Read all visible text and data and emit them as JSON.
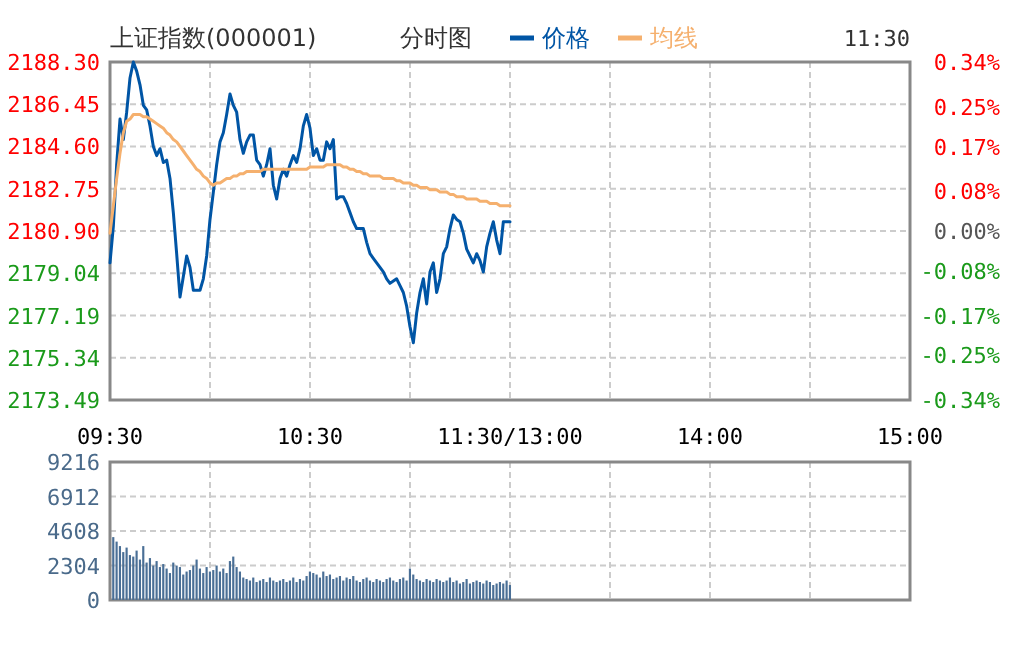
{
  "chart_data": [
    {
      "type": "line",
      "title": "上证指数(000001)",
      "subtitle": "分时图",
      "annotations": [
        "11:30"
      ],
      "legend": "top",
      "grid": true,
      "categories": [
        "09:30",
        null,
        null,
        null,
        null,
        null,
        null,
        null,
        null,
        null,
        null,
        null,
        null,
        null,
        null,
        null,
        null,
        null,
        null,
        null,
        null,
        null,
        null,
        null,
        null,
        null,
        null,
        null,
        null,
        null,
        null,
        null,
        null,
        null,
        null,
        null,
        null,
        null,
        null,
        null,
        null,
        null,
        null,
        null,
        null,
        null,
        null,
        null,
        null,
        null,
        null,
        null,
        null,
        null,
        null,
        null,
        null,
        null,
        null,
        null,
        "10:30",
        null,
        null,
        null,
        null,
        null,
        null,
        null,
        null,
        null,
        null,
        null,
        null,
        null,
        null,
        null,
        null,
        null,
        null,
        null,
        null,
        null,
        null,
        null,
        null,
        null,
        null,
        null,
        null,
        null,
        null,
        null,
        null,
        null,
        null,
        null,
        null,
        null,
        null,
        null,
        null,
        null,
        null,
        null,
        null,
        null,
        null,
        null,
        null,
        null,
        null,
        null,
        null,
        null,
        null,
        null,
        null,
        null,
        null,
        null,
        "11:30/13:00",
        null,
        null,
        null,
        null,
        null,
        null,
        null,
        null,
        null,
        null,
        null,
        null,
        null,
        null,
        null,
        null,
        null,
        null,
        null,
        null,
        null,
        null,
        null,
        null,
        null,
        null,
        null,
        null,
        null,
        null,
        null,
        null,
        null,
        null,
        null,
        null,
        null,
        null,
        null,
        null,
        null,
        null,
        null,
        null,
        null,
        null,
        null,
        null,
        null,
        null,
        null,
        null,
        null,
        null,
        null,
        null,
        null,
        null,
        null,
        "14:00",
        null,
        null,
        null,
        null,
        null,
        null,
        null,
        null,
        null,
        null,
        null,
        null,
        null,
        null,
        null,
        null,
        null,
        null,
        null,
        null,
        null,
        null,
        null,
        null,
        null,
        null,
        null,
        null,
        null,
        null,
        null,
        null,
        null,
        null,
        null,
        null,
        null,
        null,
        null,
        null,
        null,
        null,
        null,
        null,
        null,
        null,
        null,
        null,
        null,
        null,
        null,
        null,
        null,
        null,
        null,
        null,
        null,
        null,
        null,
        "15:00"
      ],
      "ylim": [
        2173.49,
        2188.3
      ],
      "yticks": [
        {
          "value": 2173.49,
          "label": "2173.49"
        },
        {
          "value": 2175.34,
          "label": "2175.34"
        },
        {
          "value": 2177.19,
          "label": "2177.19"
        },
        {
          "value": 2179.04,
          "label": "2179.04"
        },
        {
          "value": 2180.9,
          "label": "2180.90"
        },
        {
          "value": 2182.75,
          "label": "2182.75"
        },
        {
          "value": 2184.6,
          "label": "2184.60"
        },
        {
          "value": 2186.45,
          "label": "2186.45"
        },
        {
          "value": 2188.3,
          "label": "2188.30"
        }
      ],
      "y2lim": [
        -0.34,
        0.34
      ],
      "y2ticks": [
        {
          "value": -0.34,
          "label": "-0.34%"
        },
        {
          "value": -0.25,
          "label": "-0.25%"
        },
        {
          "value": -0.17,
          "label": "-0.17%"
        },
        {
          "value": -0.08,
          "label": "-0.08%"
        },
        {
          "value": 0,
          "label": "0.00%"
        },
        {
          "value": 0.08,
          "label": "0.08%"
        },
        {
          "value": 0.17,
          "label": "0.17%"
        },
        {
          "value": 0.25,
          "label": "0.25%"
        },
        {
          "value": 0.34,
          "label": "0.34%"
        }
      ],
      "series": [
        {
          "name": "价格",
          "color": "#0055a5",
          "values": [
            2179.5,
            2181.1,
            2183.8,
            2185.8,
            2184.9,
            2186.1,
            2187.6,
            2188.3,
            2187.9,
            2187.3,
            2186.4,
            2186.2,
            2185.5,
            2184.6,
            2184.2,
            2184.5,
            2183.9,
            2184.0,
            2183.2,
            2181.7,
            2179.9,
            2178.0,
            2178.9,
            2179.8,
            2179.3,
            2178.3,
            2178.3,
            2178.3,
            2178.8,
            2179.8,
            2181.4,
            2182.6,
            2183.8,
            2184.8,
            2185.2,
            2186.0,
            2186.9,
            2186.4,
            2186.1,
            2184.9,
            2184.3,
            2184.8,
            2185.1,
            2185.1,
            2184.0,
            2183.8,
            2183.3,
            2183.8,
            2184.5,
            2182.9,
            2182.3,
            2183.2,
            2183.6,
            2183.3,
            2183.8,
            2184.2,
            2183.9,
            2184.5,
            2185.5,
            2186.0,
            2185.4,
            2184.2,
            2184.5,
            2184.0,
            2184.0,
            2184.8,
            2184.5,
            2184.9,
            2182.3,
            2182.4,
            2182.4,
            2182.1,
            2181.7,
            2181.3,
            2181.0,
            2181.0,
            2181.0,
            2180.4,
            2179.9,
            2179.7,
            2179.5,
            2179.3,
            2179.1,
            2178.8,
            2178.6,
            2178.7,
            2178.8,
            2178.5,
            2178.2,
            2177.6,
            2176.7,
            2176.0,
            2177.3,
            2178.2,
            2178.8,
            2177.7,
            2179.1,
            2179.5,
            2178.2,
            2178.8,
            2179.9,
            2180.2,
            2181.0,
            2181.6,
            2181.4,
            2181.3,
            2180.8,
            2180.1,
            2179.8,
            2179.5,
            2179.9,
            2179.6,
            2179.1,
            2180.2,
            2180.8,
            2181.3,
            2180.5,
            2179.9,
            2181.3,
            2181.3,
            2181.3,
            null,
            null,
            null,
            null,
            null,
            null,
            null,
            null,
            null,
            null,
            null,
            null,
            null,
            null,
            null,
            null,
            null,
            null,
            null,
            null,
            null,
            null,
            null,
            null,
            null,
            null,
            null,
            null,
            null,
            null,
            null,
            null,
            null,
            null,
            null,
            null,
            null,
            null,
            null,
            null,
            null,
            null,
            null,
            null,
            null,
            null,
            null,
            null,
            null,
            null,
            null,
            null,
            null,
            null,
            null,
            null,
            null,
            null,
            null,
            null,
            null,
            null,
            null,
            null,
            null,
            null,
            null,
            null,
            null,
            null,
            null,
            null,
            null,
            null,
            null,
            null,
            null,
            null,
            null,
            null,
            null,
            null,
            null,
            null,
            null,
            null,
            null,
            null,
            null,
            null,
            null,
            null,
            null,
            null,
            null,
            null,
            null,
            null,
            null,
            null,
            null,
            null,
            null,
            null,
            null,
            null,
            null,
            null,
            null,
            null,
            null,
            null,
            null,
            null,
            null,
            null,
            null,
            null,
            null,
            null
          ]
        },
        {
          "name": "均线",
          "color": "#f5b06e",
          "values": [
            2180.8,
            2182.0,
            2183.2,
            2184.3,
            2185.2,
            2185.7,
            2185.8,
            2186.0,
            2186.0,
            2186.0,
            2185.9,
            2185.9,
            2185.8,
            2185.7,
            2185.6,
            2185.5,
            2185.4,
            2185.2,
            2185.1,
            2184.9,
            2184.8,
            2184.6,
            2184.4,
            2184.2,
            2184.0,
            2183.8,
            2183.6,
            2183.5,
            2183.3,
            2183.2,
            2183.0,
            2182.9,
            2183.0,
            2183.0,
            2183.1,
            2183.2,
            2183.2,
            2183.3,
            2183.3,
            2183.4,
            2183.4,
            2183.5,
            2183.5,
            2183.5,
            2183.5,
            2183.5,
            2183.6,
            2183.6,
            2183.6,
            2183.6,
            2183.6,
            2183.6,
            2183.6,
            2183.6,
            2183.6,
            2183.6,
            2183.6,
            2183.6,
            2183.6,
            2183.6,
            2183.7,
            2183.7,
            2183.7,
            2183.7,
            2183.7,
            2183.8,
            2183.8,
            2183.8,
            2183.8,
            2183.8,
            2183.7,
            2183.7,
            2183.6,
            2183.6,
            2183.5,
            2183.5,
            2183.4,
            2183.4,
            2183.3,
            2183.3,
            2183.3,
            2183.3,
            2183.2,
            2183.2,
            2183.2,
            2183.2,
            2183.1,
            2183.1,
            2183.0,
            2183.0,
            2183.0,
            2182.9,
            2182.9,
            2182.8,
            2182.8,
            2182.8,
            2182.7,
            2182.7,
            2182.7,
            2182.6,
            2182.6,
            2182.6,
            2182.5,
            2182.5,
            2182.4,
            2182.4,
            2182.4,
            2182.3,
            2182.3,
            2182.3,
            2182.3,
            2182.2,
            2182.2,
            2182.2,
            2182.1,
            2182.1,
            2182.1,
            2182.0,
            2182.0,
            2182.0,
            2182.0,
            null,
            null,
            null,
            null,
            null,
            null,
            null,
            null,
            null,
            null,
            null,
            null,
            null,
            null,
            null,
            null,
            null,
            null,
            null,
            null,
            null,
            null,
            null,
            null,
            null,
            null,
            null,
            null,
            null,
            null,
            null,
            null,
            null,
            null,
            null,
            null,
            null,
            null,
            null,
            null,
            null,
            null,
            null,
            null,
            null,
            null,
            null,
            null,
            null,
            null,
            null,
            null,
            null,
            null,
            null,
            null,
            null,
            null,
            null,
            null,
            null,
            null,
            null,
            null,
            null,
            null,
            null,
            null,
            null,
            null,
            null,
            null,
            null,
            null,
            null,
            null,
            null,
            null,
            null,
            null,
            null,
            null,
            null,
            null,
            null,
            null,
            null,
            null,
            null,
            null,
            null,
            null,
            null,
            null,
            null,
            null,
            null,
            null,
            null,
            null,
            null,
            null,
            null,
            null,
            null,
            null,
            null,
            null,
            null,
            null,
            null,
            null,
            null,
            null,
            null,
            null,
            null,
            null,
            null,
            null
          ]
        }
      ]
    },
    {
      "type": "bar",
      "color": "#4a6f96",
      "grid": true,
      "tick_labels": "y",
      "categories": [
        null,
        null,
        null,
        null,
        null,
        null,
        null,
        null,
        null,
        null,
        null,
        null,
        null,
        null,
        null,
        null,
        null,
        null,
        null,
        null,
        null,
        null,
        null,
        null,
        null,
        null,
        null,
        null,
        null,
        null,
        null,
        null,
        null,
        null,
        null,
        null,
        null,
        null,
        null,
        null,
        null,
        null,
        null,
        null,
        null,
        null,
        null,
        null,
        null,
        null,
        null,
        null,
        null,
        null,
        null,
        null,
        null,
        null,
        null,
        null,
        null,
        null,
        null,
        null,
        null,
        null,
        null,
        null,
        null,
        null,
        null,
        null,
        null,
        null,
        null,
        null,
        null,
        null,
        null,
        null,
        null,
        null,
        null,
        null,
        null,
        null,
        null,
        null,
        null,
        null,
        null,
        null,
        null,
        null,
        null,
        null,
        null,
        null,
        null,
        null,
        null,
        null,
        null,
        null,
        null,
        null,
        null,
        null,
        null,
        null,
        null,
        null,
        null,
        null,
        null,
        null,
        null,
        null,
        null,
        null,
        null,
        null,
        null,
        null,
        null,
        null,
        null,
        null,
        null,
        null,
        null,
        null,
        null,
        null,
        null,
        null,
        null,
        null,
        null,
        null,
        null,
        null,
        null,
        null,
        null,
        null,
        null,
        null,
        null,
        null,
        null,
        null,
        null,
        null,
        null,
        null,
        null,
        null,
        null,
        null,
        null,
        null,
        null,
        null,
        null,
        null,
        null,
        null,
        null,
        null,
        null,
        null,
        null,
        null,
        null,
        null,
        null,
        null,
        null,
        null,
        null,
        null,
        null,
        null,
        null,
        null,
        null,
        null,
        null,
        null,
        null,
        null,
        null,
        null,
        null,
        null,
        null,
        null,
        null,
        null,
        null,
        null,
        null,
        null,
        null,
        null,
        null,
        null,
        null,
        null,
        null,
        null,
        null,
        null,
        null,
        null,
        null,
        null,
        null,
        null,
        null,
        null,
        null,
        null,
        null,
        null,
        null,
        null,
        null,
        null,
        null,
        null,
        null,
        null,
        null,
        null,
        null,
        null,
        null,
        null,
        null
      ],
      "ylim": [
        0,
        9216
      ],
      "yticks": [
        0,
        2304,
        4608,
        6912,
        9216
      ],
      "values": [
        4200,
        3900,
        3600,
        3200,
        3500,
        3000,
        2900,
        3300,
        2700,
        3600,
        2500,
        2800,
        2300,
        2600,
        2200,
        2400,
        2100,
        1800,
        2500,
        2300,
        2200,
        1700,
        1900,
        2000,
        2300,
        2700,
        2100,
        1800,
        2200,
        1900,
        2000,
        2300,
        1900,
        2100,
        1800,
        2600,
        2900,
        2200,
        1900,
        1500,
        1400,
        1300,
        1500,
        1200,
        1300,
        1400,
        1200,
        1500,
        1300,
        1200,
        1300,
        1400,
        1200,
        1300,
        1500,
        1200,
        1400,
        1300,
        1600,
        1900,
        1800,
        1700,
        1500,
        1900,
        1600,
        1700,
        1400,
        1500,
        1600,
        1300,
        1500,
        1400,
        1600,
        1300,
        1200,
        1400,
        1500,
        1300,
        1200,
        1400,
        1300,
        1200,
        1400,
        1500,
        1300,
        1200,
        1400,
        1500,
        1300,
        2100,
        1700,
        1400,
        1300,
        1200,
        1400,
        1300,
        1200,
        1400,
        1300,
        1200,
        1300,
        1500,
        1200,
        1300,
        1100,
        1200,
        1400,
        1100,
        1200,
        1300,
        1200,
        1100,
        1300,
        1200,
        1000,
        1100,
        1200,
        1100,
        1300,
        1000,
        null,
        null,
        null,
        null,
        null,
        null,
        null,
        null,
        null,
        null,
        null,
        null,
        null,
        null,
        null,
        null,
        null,
        null,
        null,
        null,
        null,
        null,
        null,
        null,
        null,
        null,
        null,
        null,
        null,
        null,
        null,
        null,
        null,
        null,
        null,
        null,
        null,
        null,
        null,
        null,
        null,
        null,
        null,
        null,
        null,
        null,
        null,
        null,
        null,
        null,
        null,
        null,
        null,
        null,
        null,
        null,
        null,
        null,
        null,
        null,
        null,
        null,
        null,
        null,
        null,
        null,
        null,
        null,
        null,
        null,
        null,
        null,
        null,
        null,
        null,
        null,
        null,
        null,
        null,
        null,
        null,
        null,
        null,
        null,
        null,
        null,
        null,
        null,
        null,
        null,
        null,
        null,
        null,
        null,
        null,
        null,
        null,
        null,
        null,
        null,
        null,
        null,
        null,
        null,
        null,
        null,
        null,
        null,
        null,
        null,
        null,
        null,
        null,
        null,
        null,
        null,
        null,
        null,
        null,
        null,
        null
      ]
    }
  ]
}
